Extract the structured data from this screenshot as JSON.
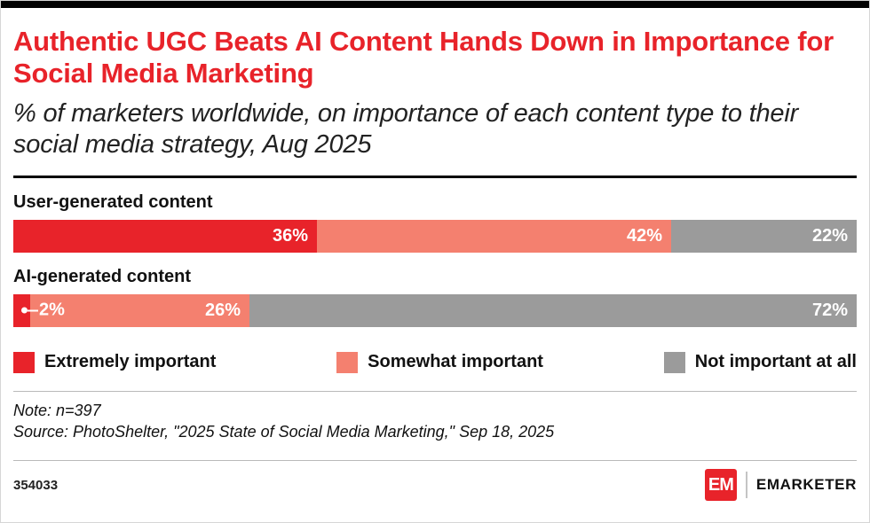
{
  "header": {
    "title": "Authentic UGC Beats AI Content Hands Down in Importance for Social Media Marketing",
    "subtitle": "% of marketers worldwide, on importance of each content type to their social media strategy, Aug 2025"
  },
  "chart_data": {
    "type": "bar",
    "orientation": "horizontal",
    "stacked": true,
    "value_suffix": "%",
    "legend_position": "bottom",
    "categories": [
      "User-generated content",
      "AI-generated content"
    ],
    "series": [
      {
        "name": "Extremely important",
        "color": "#e8232a",
        "values": [
          36,
          2
        ]
      },
      {
        "name": "Somewhat important",
        "color": "#f4806f",
        "values": [
          42,
          26
        ]
      },
      {
        "name": "Not important at all",
        "color": "#9b9b9b",
        "values": [
          22,
          72
        ]
      }
    ],
    "callouts": {
      "ai_extremely_label": "2%"
    }
  },
  "notes": {
    "note": "Note: n=397",
    "source": "Source: PhotoShelter, \"2025 State of Social Media Marketing,\" Sep 18, 2025"
  },
  "footer": {
    "chart_id": "354033",
    "logo_monogram": "EM",
    "brand": "EMARKETER"
  },
  "colors": {
    "accent_red": "#e8232a",
    "salmon": "#f4806f",
    "gray": "#9b9b9b",
    "top_bar": "#000000"
  }
}
